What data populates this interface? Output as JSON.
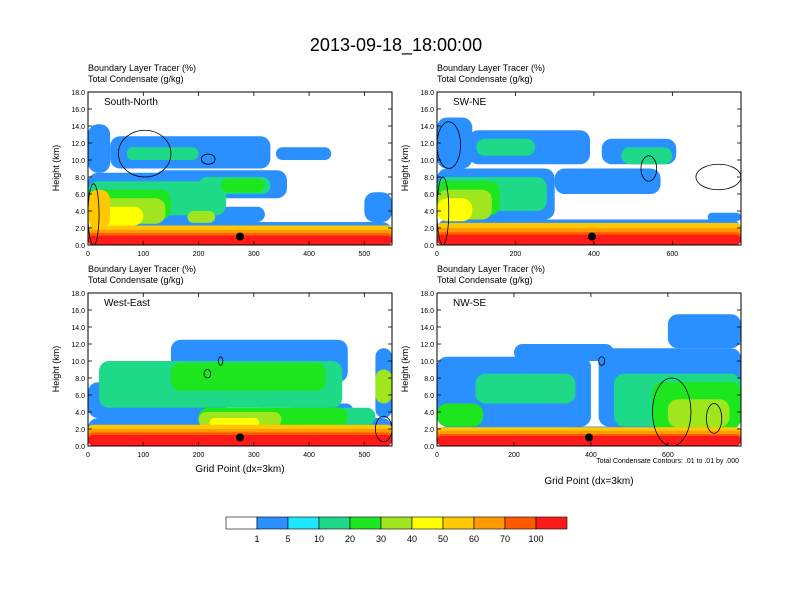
{
  "figure": {
    "title": "2013-09-18_18:00:00",
    "footnote": "Total Condensate Contours: .01 to .01 by .000"
  },
  "chart_data": [
    {
      "type": "heatmap",
      "title": "South-North",
      "subtitle_1": "Boundary Layer Tracer   (%)",
      "subtitle_2": "Total Condensate   (g/kg)",
      "ylabel": "Height (km)",
      "xlabel": "",
      "xlim": [
        0,
        550
      ],
      "ylim": [
        0,
        18
      ],
      "xticks": [
        0,
        100,
        200,
        300,
        400,
        500
      ],
      "yticks": [
        0.0,
        2.0,
        4.0,
        6.0,
        8.0,
        10.0,
        12.0,
        14.0,
        16.0,
        18.0
      ],
      "marker": {
        "x": 275,
        "y": 1.0
      },
      "blobs": [
        {
          "level": 1,
          "xs": [
            0,
            550
          ],
          "ys": [
            0,
            2.7
          ]
        },
        {
          "level": 1,
          "xs": [
            0,
            320
          ],
          "ys": [
            2.7,
            4.5
          ]
        },
        {
          "level": 1,
          "xs": [
            0,
            250
          ],
          "ys": [
            4.5,
            8.5
          ]
        },
        {
          "level": 1,
          "xs": [
            500,
            550
          ],
          "ys": [
            2.7,
            6.2
          ]
        },
        {
          "level": 1,
          "xs": [
            0,
            40
          ],
          "ys": [
            8.5,
            14.2
          ]
        },
        {
          "level": 1,
          "xs": [
            40,
            330
          ],
          "ys": [
            9.0,
            12.8
          ]
        },
        {
          "level": 1,
          "xs": [
            340,
            440
          ],
          "ys": [
            10.0,
            11.5
          ]
        },
        {
          "level": 1,
          "xs": [
            120,
            360
          ],
          "ys": [
            5.5,
            8.8
          ]
        },
        {
          "level": 3,
          "xs": [
            0,
            250
          ],
          "ys": [
            3.5,
            7.5
          ]
        },
        {
          "level": 3,
          "xs": [
            200,
            330
          ],
          "ys": [
            6.0,
            8.0
          ]
        },
        {
          "level": 3,
          "xs": [
            70,
            200
          ],
          "ys": [
            10.0,
            11.5
          ]
        },
        {
          "level": 4,
          "xs": [
            0,
            150
          ],
          "ys": [
            3.0,
            6.5
          ]
        },
        {
          "level": 4,
          "xs": [
            240,
            320
          ],
          "ys": [
            6.2,
            7.8
          ]
        },
        {
          "level": 5,
          "xs": [
            0,
            140
          ],
          "ys": [
            2.5,
            5.5
          ]
        },
        {
          "level": 5,
          "xs": [
            180,
            230
          ],
          "ys": [
            2.6,
            4.0
          ]
        },
        {
          "level": 6,
          "xs": [
            0,
            100
          ],
          "ys": [
            2.3,
            4.5
          ]
        },
        {
          "level": 7,
          "xs": [
            0,
            550
          ],
          "ys": [
            1.2,
            2.3
          ]
        },
        {
          "level": 7,
          "xs": [
            0,
            40
          ],
          "ys": [
            2.0,
            6.5
          ]
        },
        {
          "level": 8,
          "xs": [
            0,
            550
          ],
          "ys": [
            0.9,
            1.8
          ]
        },
        {
          "level": 9,
          "xs": [
            0,
            550
          ],
          "ys": [
            0.5,
            1.4
          ]
        },
        {
          "level": 10,
          "xs": [
            0,
            550
          ],
          "ys": [
            0,
            1.1
          ]
        }
      ],
      "contours": [
        {
          "xs": [
            55,
            150
          ],
          "ys": [
            8.0,
            13.5
          ]
        },
        {
          "xs": [
            205,
            230
          ],
          "ys": [
            9.5,
            10.7
          ]
        },
        {
          "xs": [
            0,
            20
          ],
          "ys": [
            0,
            7.2
          ]
        }
      ]
    },
    {
      "type": "heatmap",
      "title": "SW-NE",
      "subtitle_1": "Boundary Layer Tracer   (%)",
      "subtitle_2": "Total Condensate   (g/kg)",
      "ylabel": "Height (km)",
      "xlabel": "",
      "xlim": [
        0,
        775
      ],
      "ylim": [
        0,
        18
      ],
      "xticks": [
        0,
        200,
        400,
        600
      ],
      "yticks": [
        0.0,
        2.0,
        4.0,
        6.0,
        8.0,
        10.0,
        12.0,
        14.0,
        16.0,
        18.0
      ],
      "marker": {
        "x": 395,
        "y": 1.0
      },
      "blobs": [
        {
          "level": 1,
          "xs": [
            0,
            775
          ],
          "ys": [
            0,
            3.0
          ]
        },
        {
          "level": 1,
          "xs": [
            0,
            300
          ],
          "ys": [
            3.0,
            9.0
          ]
        },
        {
          "level": 1,
          "xs": [
            0,
            90
          ],
          "ys": [
            9.0,
            15.0
          ]
        },
        {
          "level": 1,
          "xs": [
            80,
            390
          ],
          "ys": [
            9.5,
            13.5
          ]
        },
        {
          "level": 1,
          "xs": [
            420,
            610
          ],
          "ys": [
            9.5,
            12.5
          ]
        },
        {
          "level": 1,
          "xs": [
            300,
            570
          ],
          "ys": [
            6.0,
            9.0
          ]
        },
        {
          "level": 1,
          "xs": [
            690,
            775
          ],
          "ys": [
            2.8,
            3.8
          ]
        },
        {
          "level": 3,
          "xs": [
            0,
            280
          ],
          "ys": [
            4.0,
            8.0
          ]
        },
        {
          "level": 3,
          "xs": [
            470,
            600
          ],
          "ys": [
            9.5,
            11.5
          ]
        },
        {
          "level": 3,
          "xs": [
            100,
            250
          ],
          "ys": [
            10.5,
            12.5
          ]
        },
        {
          "level": 4,
          "xs": [
            0,
            160
          ],
          "ys": [
            3.5,
            7.5
          ]
        },
        {
          "level": 5,
          "xs": [
            0,
            140
          ],
          "ys": [
            3.0,
            6.5
          ]
        },
        {
          "level": 6,
          "xs": [
            0,
            90
          ],
          "ys": [
            2.8,
            5.5
          ]
        },
        {
          "level": 7,
          "xs": [
            0,
            775
          ],
          "ys": [
            1.5,
            2.6
          ]
        },
        {
          "level": 8,
          "xs": [
            0,
            775
          ],
          "ys": [
            1.0,
            2.0
          ]
        },
        {
          "level": 9,
          "xs": [
            0,
            775
          ],
          "ys": [
            0.5,
            1.5
          ]
        },
        {
          "level": 10,
          "xs": [
            0,
            775
          ],
          "ys": [
            0,
            1.2
          ]
        }
      ],
      "contours": [
        {
          "xs": [
            660,
            775
          ],
          "ys": [
            6.5,
            9.5
          ]
        },
        {
          "xs": [
            0,
            60
          ],
          "ys": [
            9.0,
            14.5
          ]
        },
        {
          "xs": [
            520,
            560
          ],
          "ys": [
            7.5,
            10.5
          ]
        },
        {
          "xs": [
            0,
            30
          ],
          "ys": [
            0,
            8.0
          ]
        }
      ]
    },
    {
      "type": "heatmap",
      "title": "West-East",
      "subtitle_1": "Boundary Layer Tracer   (%)",
      "subtitle_2": "Total Condensate   (g/kg)",
      "ylabel": "Height (km)",
      "xlabel": "Grid Point (dx=3km)",
      "xlim": [
        0,
        550
      ],
      "ylim": [
        0,
        18
      ],
      "xticks": [
        0,
        100,
        200,
        300,
        400,
        500
      ],
      "yticks": [
        0.0,
        2.0,
        4.0,
        6.0,
        8.0,
        10.0,
        12.0,
        14.0,
        16.0,
        18.0
      ],
      "marker": {
        "x": 275,
        "y": 1.0
      },
      "blobs": [
        {
          "level": 1,
          "xs": [
            0,
            550
          ],
          "ys": [
            0,
            3.3
          ]
        },
        {
          "level": 1,
          "xs": [
            0,
            250
          ],
          "ys": [
            3.3,
            7.5
          ]
        },
        {
          "level": 1,
          "xs": [
            150,
            470
          ],
          "ys": [
            7.5,
            12.5
          ]
        },
        {
          "level": 1,
          "xs": [
            370,
            480
          ],
          "ys": [
            3.3,
            5.0
          ]
        },
        {
          "level": 1,
          "xs": [
            520,
            550
          ],
          "ys": [
            3.3,
            11.5
          ]
        },
        {
          "level": 3,
          "xs": [
            20,
            460
          ],
          "ys": [
            4.5,
            10.0
          ]
        },
        {
          "level": 3,
          "xs": [
            300,
            520
          ],
          "ys": [
            2.5,
            4.5
          ]
        },
        {
          "level": 4,
          "xs": [
            150,
            430
          ],
          "ys": [
            6.5,
            9.8
          ]
        },
        {
          "level": 4,
          "xs": [
            200,
            470
          ],
          "ys": [
            2.3,
            4.5
          ]
        },
        {
          "level": 5,
          "xs": [
            200,
            350
          ],
          "ys": [
            2.2,
            4.0
          ]
        },
        {
          "level": 5,
          "xs": [
            520,
            550
          ],
          "ys": [
            5.0,
            9.0
          ]
        },
        {
          "level": 6,
          "xs": [
            220,
            310
          ],
          "ys": [
            2.2,
            3.3
          ]
        },
        {
          "level": 7,
          "xs": [
            0,
            550
          ],
          "ys": [
            1.5,
            2.5
          ]
        },
        {
          "level": 8,
          "xs": [
            0,
            550
          ],
          "ys": [
            1.0,
            2.0
          ]
        },
        {
          "level": 9,
          "xs": [
            0,
            550
          ],
          "ys": [
            0.5,
            1.6
          ]
        },
        {
          "level": 10,
          "xs": [
            0,
            550
          ],
          "ys": [
            0,
            1.3
          ]
        }
      ],
      "contours": [
        {
          "xs": [
            236,
            244
          ],
          "ys": [
            9.5,
            10.5
          ]
        },
        {
          "xs": [
            210,
            222
          ],
          "ys": [
            8.0,
            9.0
          ]
        },
        {
          "xs": [
            520,
            550
          ],
          "ys": [
            0.5,
            3.5
          ]
        }
      ]
    },
    {
      "type": "heatmap",
      "title": "NW-SE",
      "subtitle_1": "Boundary Layer Tracer   (%)",
      "subtitle_2": "Total Condensate   (g/kg)",
      "ylabel": "Height (km)",
      "xlabel": "Grid Point (dx=3km)",
      "xlim": [
        0,
        790
      ],
      "ylim": [
        0,
        18
      ],
      "xticks": [
        0,
        200,
        400,
        600
      ],
      "yticks": [
        0.0,
        2.0,
        4.0,
        6.0,
        8.0,
        10.0,
        12.0,
        14.0,
        16.0,
        18.0
      ],
      "marker": {
        "x": 395,
        "y": 1.0
      },
      "blobs": [
        {
          "level": 1,
          "xs": [
            0,
            790
          ],
          "ys": [
            0,
            2.3
          ]
        },
        {
          "level": 1,
          "xs": [
            0,
            400
          ],
          "ys": [
            2.3,
            10.5
          ]
        },
        {
          "level": 1,
          "xs": [
            200,
            460
          ],
          "ys": [
            10.0,
            12.0
          ]
        },
        {
          "level": 1,
          "xs": [
            420,
            790
          ],
          "ys": [
            2.3,
            11.5
          ]
        },
        {
          "level": 1,
          "xs": [
            600,
            790
          ],
          "ys": [
            11.5,
            15.5
          ]
        },
        {
          "level": 3,
          "xs": [
            100,
            360
          ],
          "ys": [
            5.0,
            8.5
          ]
        },
        {
          "level": 3,
          "xs": [
            460,
            790
          ],
          "ys": [
            2.3,
            8.5
          ]
        },
        {
          "level": 4,
          "xs": [
            0,
            120
          ],
          "ys": [
            2.3,
            5.0
          ]
        },
        {
          "level": 4,
          "xs": [
            560,
            790
          ],
          "ys": [
            2.0,
            7.5
          ]
        },
        {
          "level": 5,
          "xs": [
            600,
            760
          ],
          "ys": [
            2.2,
            5.5
          ]
        },
        {
          "level": 7,
          "xs": [
            0,
            790
          ],
          "ys": [
            1.3,
            2.2
          ]
        },
        {
          "level": 8,
          "xs": [
            0,
            790
          ],
          "ys": [
            1.0,
            1.8
          ]
        },
        {
          "level": 9,
          "xs": [
            0,
            790
          ],
          "ys": [
            0.5,
            1.4
          ]
        },
        {
          "level": 10,
          "xs": [
            0,
            790
          ],
          "ys": [
            0,
            1.2
          ]
        }
      ],
      "contours": [
        {
          "xs": [
            560,
            660
          ],
          "ys": [
            0,
            8.0
          ]
        },
        {
          "xs": [
            700,
            740
          ],
          "ys": [
            1.5,
            5.0
          ]
        },
        {
          "xs": [
            420,
            436
          ],
          "ys": [
            9.5,
            10.5
          ]
        }
      ]
    }
  ],
  "legend": {
    "labels": [
      "1",
      "5",
      "10",
      "20",
      "30",
      "40",
      "50",
      "60",
      "70",
      "100"
    ],
    "colors": [
      "#ffffff",
      "#2a8fff",
      "#1ee6ff",
      "#1ed987",
      "#1ee61e",
      "#a0e61e",
      "#ffff00",
      "#ffc800",
      "#ff9b00",
      "#ff5a00",
      "#ff1a1a"
    ]
  }
}
